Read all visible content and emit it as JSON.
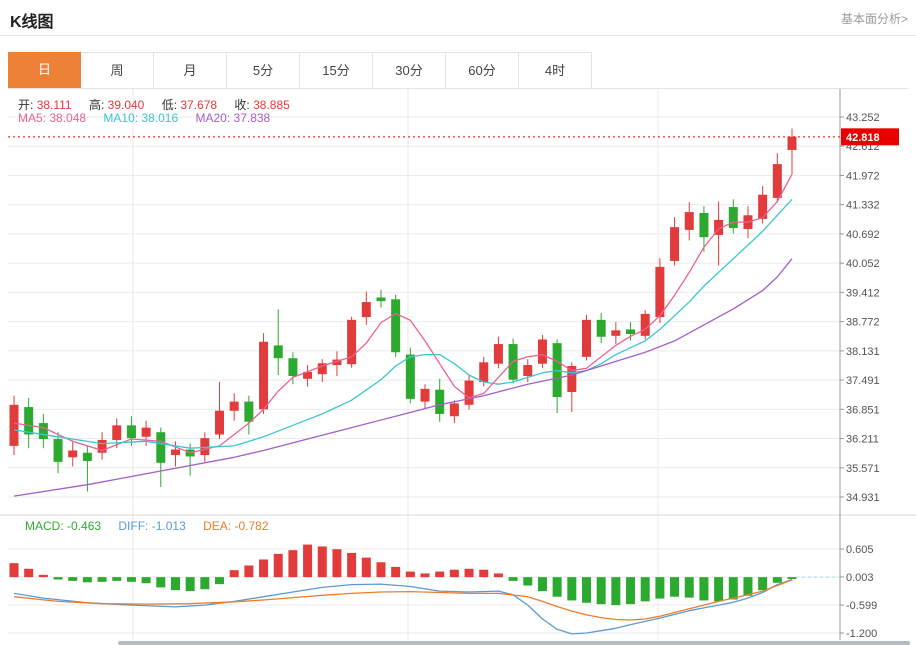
{
  "header": {
    "title": "K线图",
    "link": "基本面分析>"
  },
  "tabs": [
    {
      "label": "日",
      "active": true
    },
    {
      "label": "周",
      "active": false
    },
    {
      "label": "月",
      "active": false
    },
    {
      "label": "5分",
      "active": false
    },
    {
      "label": "15分",
      "active": false
    },
    {
      "label": "30分",
      "active": false
    },
    {
      "label": "60分",
      "active": false
    },
    {
      "label": "4时",
      "active": false
    }
  ],
  "legend_ohlc": [
    {
      "label": "开:",
      "value": "38.111"
    },
    {
      "label": "高:",
      "value": "39.040"
    },
    {
      "label": "低:",
      "value": "37.678"
    },
    {
      "label": "收:",
      "value": "38.885"
    }
  ],
  "legend_ma": [
    {
      "label": "MA5:",
      "value": "38.048",
      "color": "#ee6192"
    },
    {
      "label": "MA10:",
      "value": "38.016",
      "color": "#3ec6d0"
    },
    {
      "label": "MA20:",
      "value": "37.838",
      "color": "#a45fc8"
    }
  ],
  "legend_macd": [
    {
      "label": "MACD:",
      "value": "-0.463",
      "color": "#2faa35"
    },
    {
      "label": "DIFF:",
      "value": "-1.013",
      "color": "#5b9bd5"
    },
    {
      "label": "DEA:",
      "value": "-0.782",
      "color": "#ed7d31"
    }
  ],
  "chart_data": {
    "type": "candlestick",
    "title": "K线图",
    "legend_position": "top-left",
    "grid": true,
    "price_axis": {
      "ticks": [
        43.252,
        42.612,
        41.972,
        41.332,
        40.692,
        40.052,
        39.412,
        38.772,
        38.131,
        37.491,
        36.851,
        36.211,
        35.571,
        34.931
      ],
      "min": 34.931,
      "max": 43.252
    },
    "current_price": 42.818,
    "vgrid": [
      133,
      408,
      658
    ],
    "candles_ohlc": [
      [
        36.05,
        37.15,
        35.85,
        36.95
      ],
      [
        36.9,
        37.1,
        36.0,
        36.3
      ],
      [
        36.55,
        36.75,
        36.0,
        36.2
      ],
      [
        36.2,
        36.35,
        35.45,
        35.7
      ],
      [
        35.8,
        36.15,
        35.6,
        35.95
      ],
      [
        35.9,
        36.05,
        35.05,
        35.72
      ],
      [
        35.9,
        36.35,
        35.75,
        36.18
      ],
      [
        36.18,
        36.65,
        36.0,
        36.5
      ],
      [
        36.5,
        36.7,
        36.05,
        36.22
      ],
      [
        36.25,
        36.6,
        36.05,
        36.45
      ],
      [
        36.35,
        36.45,
        35.15,
        35.68
      ],
      [
        35.85,
        36.15,
        35.6,
        35.97
      ],
      [
        35.97,
        36.1,
        35.4,
        35.82
      ],
      [
        35.85,
        36.35,
        35.7,
        36.22
      ],
      [
        36.3,
        37.45,
        36.2,
        36.82
      ],
      [
        36.82,
        37.2,
        36.6,
        37.02
      ],
      [
        37.02,
        37.15,
        36.3,
        36.58
      ],
      [
        36.85,
        38.52,
        36.75,
        38.33
      ],
      [
        38.25,
        39.04,
        37.6,
        37.97
      ],
      [
        37.97,
        38.1,
        37.4,
        37.58
      ],
      [
        37.52,
        37.82,
        37.35,
        37.67
      ],
      [
        37.62,
        37.95,
        37.45,
        37.86
      ],
      [
        37.82,
        38.12,
        37.58,
        37.94
      ],
      [
        37.84,
        38.88,
        37.76,
        38.81
      ],
      [
        38.87,
        39.43,
        38.7,
        39.2
      ],
      [
        39.3,
        39.47,
        39.08,
        39.22
      ],
      [
        39.26,
        39.36,
        38.0,
        38.1
      ],
      [
        38.05,
        38.2,
        36.98,
        37.08
      ],
      [
        37.02,
        37.4,
        36.88,
        37.3
      ],
      [
        37.28,
        37.52,
        36.58,
        36.75
      ],
      [
        36.7,
        37.05,
        36.55,
        36.98
      ],
      [
        36.95,
        37.6,
        36.85,
        37.48
      ],
      [
        37.45,
        38.0,
        37.35,
        37.88
      ],
      [
        37.85,
        38.44,
        37.75,
        38.28
      ],
      [
        38.28,
        38.4,
        37.42,
        37.5
      ],
      [
        37.58,
        37.95,
        37.45,
        37.82
      ],
      [
        37.85,
        38.48,
        37.75,
        38.38
      ],
      [
        38.3,
        38.38,
        36.77,
        37.12
      ],
      [
        37.23,
        37.88,
        36.79,
        37.8
      ],
      [
        38.0,
        38.92,
        37.92,
        38.81
      ],
      [
        38.81,
        38.96,
        38.3,
        38.44
      ],
      [
        38.46,
        38.76,
        38.28,
        38.58
      ],
      [
        38.6,
        38.76,
        38.36,
        38.5
      ],
      [
        38.46,
        39.02,
        38.38,
        38.94
      ],
      [
        38.87,
        40.16,
        38.74,
        39.97
      ],
      [
        40.1,
        41.06,
        40.0,
        40.84
      ],
      [
        40.78,
        41.39,
        40.55,
        41.17
      ],
      [
        41.15,
        41.3,
        40.3,
        40.62
      ],
      [
        40.67,
        41.4,
        40.0,
        41.0
      ],
      [
        41.28,
        41.45,
        40.7,
        40.82
      ],
      [
        40.8,
        41.3,
        40.6,
        41.1
      ],
      [
        41.02,
        41.74,
        40.92,
        41.55
      ],
      [
        41.48,
        42.46,
        41.38,
        42.22
      ],
      [
        42.53,
        43.0,
        42.0,
        42.82
      ]
    ],
    "ma5": {
      "name": "MA5",
      "color": "#ee6192",
      "anchors": [
        [
          0,
          36.55
        ],
        [
          2,
          36.45
        ],
        [
          4,
          36.15
        ],
        [
          6,
          35.95
        ],
        [
          8,
          36.2
        ],
        [
          10,
          36.15
        ],
        [
          12,
          35.9
        ],
        [
          14,
          36.05
        ],
        [
          16,
          36.55
        ],
        [
          17,
          36.85
        ],
        [
          18,
          37.25
        ],
        [
          19,
          37.55
        ],
        [
          21,
          37.8
        ],
        [
          23,
          38.0
        ],
        [
          24,
          38.3
        ],
        [
          25,
          38.75
        ],
        [
          26,
          38.95
        ],
        [
          27,
          38.8
        ],
        [
          28,
          38.35
        ],
        [
          29,
          37.85
        ],
        [
          30,
          37.35
        ],
        [
          31,
          37.1
        ],
        [
          32,
          37.2
        ],
        [
          33,
          37.55
        ],
        [
          34,
          37.9
        ],
        [
          35,
          38.0
        ],
        [
          36,
          38.05
        ],
        [
          37,
          37.9
        ],
        [
          38,
          37.7
        ],
        [
          39,
          37.75
        ],
        [
          40,
          38.0
        ],
        [
          41,
          38.25
        ],
        [
          42,
          38.45
        ],
        [
          43,
          38.6
        ],
        [
          44,
          38.9
        ],
        [
          45,
          39.35
        ],
        [
          46,
          39.85
        ],
        [
          47,
          40.4
        ],
        [
          48,
          40.8
        ],
        [
          49,
          40.95
        ],
        [
          50,
          40.95
        ],
        [
          51,
          41.05
        ],
        [
          52,
          41.4
        ],
        [
          53,
          42.0
        ]
      ]
    },
    "ma10": {
      "name": "MA10",
      "color": "#3ec6d0",
      "anchors": [
        [
          0,
          36.4
        ],
        [
          3,
          36.25
        ],
        [
          6,
          36.1
        ],
        [
          9,
          36.15
        ],
        [
          12,
          36.0
        ],
        [
          15,
          36.05
        ],
        [
          17,
          36.25
        ],
        [
          19,
          36.5
        ],
        [
          21,
          36.75
        ],
        [
          23,
          37.05
        ],
        [
          25,
          37.5
        ],
        [
          26,
          37.8
        ],
        [
          27,
          38.0
        ],
        [
          28,
          38.05
        ],
        [
          29,
          38.05
        ],
        [
          30,
          37.85
        ],
        [
          31,
          37.6
        ],
        [
          32,
          37.45
        ],
        [
          33,
          37.4
        ],
        [
          34,
          37.45
        ],
        [
          35,
          37.55
        ],
        [
          36,
          37.65
        ],
        [
          37,
          37.7
        ],
        [
          38,
          37.65
        ],
        [
          39,
          37.7
        ],
        [
          40,
          37.85
        ],
        [
          41,
          38.05
        ],
        [
          42,
          38.2
        ],
        [
          43,
          38.35
        ],
        [
          44,
          38.6
        ],
        [
          45,
          38.9
        ],
        [
          46,
          39.2
        ],
        [
          47,
          39.55
        ],
        [
          48,
          39.85
        ],
        [
          49,
          40.15
        ],
        [
          50,
          40.45
        ],
        [
          51,
          40.75
        ],
        [
          52,
          41.1
        ],
        [
          53,
          41.45
        ]
      ]
    },
    "ma20": {
      "name": "MA20",
      "color": "#a45fc8",
      "anchors": [
        [
          0,
          34.95
        ],
        [
          5,
          35.2
        ],
        [
          10,
          35.5
        ],
        [
          15,
          35.8
        ],
        [
          17,
          35.95
        ],
        [
          20,
          36.2
        ],
        [
          23,
          36.45
        ],
        [
          26,
          36.7
        ],
        [
          29,
          36.95
        ],
        [
          32,
          37.15
        ],
        [
          35,
          37.4
        ],
        [
          38,
          37.6
        ],
        [
          41,
          37.9
        ],
        [
          43,
          38.1
        ],
        [
          45,
          38.35
        ],
        [
          47,
          38.7
        ],
        [
          49,
          39.05
        ],
        [
          51,
          39.45
        ],
        [
          52,
          39.75
        ],
        [
          53,
          40.15
        ]
      ]
    },
    "macd": {
      "axis_ticks": [
        0.605,
        0.003,
        -0.599,
        -1.2
      ],
      "hist": [
        0.3,
        0.18,
        0.05,
        -0.05,
        -0.08,
        -0.11,
        -0.1,
        -0.08,
        -0.1,
        -0.13,
        -0.22,
        -0.28,
        -0.3,
        -0.26,
        -0.15,
        0.15,
        0.25,
        0.38,
        0.5,
        0.58,
        0.7,
        0.66,
        0.6,
        0.52,
        0.42,
        0.32,
        0.22,
        0.12,
        0.08,
        0.12,
        0.16,
        0.18,
        0.16,
        0.08,
        -0.08,
        -0.18,
        -0.3,
        -0.42,
        -0.5,
        -0.55,
        -0.58,
        -0.6,
        -0.58,
        -0.52,
        -0.46,
        -0.42,
        -0.44,
        -0.5,
        -0.52,
        -0.48,
        -0.4,
        -0.28,
        -0.12,
        -0.04
      ],
      "diff": {
        "name": "DIFF",
        "color": "#5b9bd5",
        "anchors": [
          [
            0,
            -0.35
          ],
          [
            2,
            -0.45
          ],
          [
            5,
            -0.55
          ],
          [
            8,
            -0.6
          ],
          [
            11,
            -0.64
          ],
          [
            13,
            -0.6
          ],
          [
            15,
            -0.52
          ],
          [
            17,
            -0.42
          ],
          [
            19,
            -0.32
          ],
          [
            21,
            -0.22
          ],
          [
            23,
            -0.16
          ],
          [
            25,
            -0.15
          ],
          [
            27,
            -0.2
          ],
          [
            29,
            -0.3
          ],
          [
            31,
            -0.32
          ],
          [
            33,
            -0.3
          ],
          [
            34,
            -0.38
          ],
          [
            35,
            -0.6
          ],
          [
            36,
            -0.9
          ],
          [
            37,
            -1.12
          ],
          [
            38,
            -1.22
          ],
          [
            39,
            -1.2
          ],
          [
            40,
            -1.15
          ],
          [
            41,
            -1.1
          ],
          [
            42,
            -1.02
          ],
          [
            43,
            -0.95
          ],
          [
            44,
            -0.88
          ],
          [
            45,
            -0.8
          ],
          [
            46,
            -0.72
          ],
          [
            47,
            -0.66
          ],
          [
            48,
            -0.6
          ],
          [
            49,
            -0.54
          ],
          [
            50,
            -0.45
          ],
          [
            51,
            -0.33
          ],
          [
            52,
            -0.16
          ],
          [
            53,
            -0.05
          ]
        ]
      },
      "dea": {
        "name": "DEA",
        "color": "#ed7d31",
        "anchors": [
          [
            0,
            -0.42
          ],
          [
            3,
            -0.52
          ],
          [
            6,
            -0.57
          ],
          [
            9,
            -0.58
          ],
          [
            12,
            -0.57
          ],
          [
            15,
            -0.53
          ],
          [
            17,
            -0.49
          ],
          [
            19,
            -0.44
          ],
          [
            21,
            -0.39
          ],
          [
            23,
            -0.35
          ],
          [
            25,
            -0.32
          ],
          [
            27,
            -0.31
          ],
          [
            29,
            -0.33
          ],
          [
            31,
            -0.35
          ],
          [
            33,
            -0.35
          ],
          [
            35,
            -0.42
          ],
          [
            36,
            -0.52
          ],
          [
            37,
            -0.63
          ],
          [
            38,
            -0.73
          ],
          [
            39,
            -0.81
          ],
          [
            40,
            -0.87
          ],
          [
            41,
            -0.91
          ],
          [
            42,
            -0.92
          ],
          [
            43,
            -0.9
          ],
          [
            44,
            -0.84
          ],
          [
            45,
            -0.76
          ],
          [
            46,
            -0.68
          ],
          [
            47,
            -0.6
          ],
          [
            48,
            -0.52
          ],
          [
            49,
            -0.45
          ],
          [
            50,
            -0.38
          ],
          [
            51,
            -0.3
          ],
          [
            52,
            -0.18
          ],
          [
            53,
            -0.06
          ]
        ]
      }
    },
    "colors": {
      "up": "#e23b3b",
      "down": "#2ca92f",
      "price_line": "#e60000",
      "grid": "#ebebeb",
      "axis": "#999999",
      "tick_text": "#555555",
      "zero_dash": "#a8d8ea"
    }
  }
}
